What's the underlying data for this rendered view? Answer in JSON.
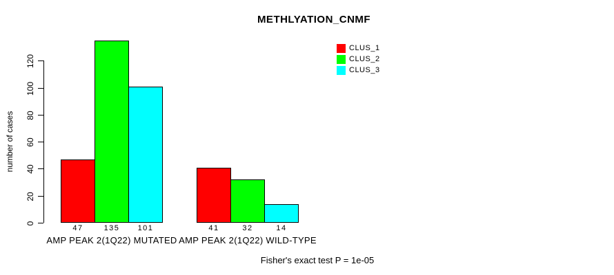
{
  "title": "METHLYATION_CNMF",
  "ylabel": "number of cases",
  "footer": "Fisher's exact test P = 1e-05",
  "legend": {
    "items": [
      {
        "label": "CLUS_1",
        "color": "#FF0000"
      },
      {
        "label": "CLUS_2",
        "color": "#00FF00"
      },
      {
        "label": "CLUS_3",
        "color": "#00FFFF"
      }
    ]
  },
  "chart_data": {
    "type": "bar",
    "title": "METHLYATION_CNMF",
    "categories": [
      "AMP PEAK 2(1Q22) MUTATED",
      "AMP PEAK 2(1Q22) WILD-TYPE"
    ],
    "series": [
      {
        "name": "CLUS_1",
        "color": "#FF0000",
        "values": [
          47,
          41
        ]
      },
      {
        "name": "CLUS_2",
        "color": "#00FF00",
        "values": [
          135,
          32
        ]
      },
      {
        "name": "CLUS_3",
        "color": "#00FFFF",
        "values": [
          101,
          14
        ]
      }
    ],
    "bar_labels": [
      [
        47,
        135,
        101
      ],
      [
        41,
        32,
        14
      ]
    ],
    "xlabel": "",
    "ylabel": "number of cases",
    "yticks": [
      0,
      20,
      40,
      60,
      80,
      100,
      120
    ],
    "ylim": [
      0,
      137
    ],
    "grid": false,
    "legend_position": "top-right",
    "annotation": "Fisher's exact test P = 1e-05"
  }
}
